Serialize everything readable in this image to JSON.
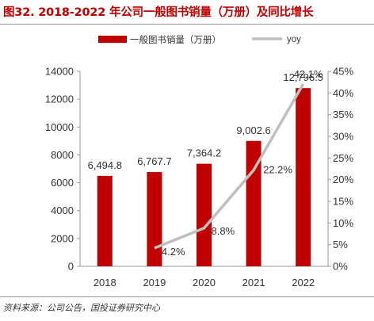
{
  "figure": {
    "title": "图32. 2018-2022 年公司一般图书销量（万册）及同比增长",
    "source": "资料来源：公司公告，国投证券研究中心"
  },
  "chart_data": {
    "type": "bar",
    "categories": [
      "2018",
      "2019",
      "2020",
      "2021",
      "2022"
    ],
    "series": [
      {
        "name": "一般图书销量（万册）",
        "type": "bar",
        "axis": "left",
        "values": [
          6494.8,
          6767.7,
          7364.2,
          9002.6,
          12796.5
        ],
        "labels": [
          "6,494.8",
          "6,767.7",
          "7,364.2",
          "9,002.6",
          "12,796.5"
        ],
        "color": "#c00000"
      },
      {
        "name": "yoy",
        "type": "line",
        "axis": "right",
        "values": [
          null,
          4.2,
          8.8,
          22.2,
          42.1
        ],
        "labels": [
          "",
          "4.2%",
          "8.8%",
          "22.2%",
          "42.1%"
        ],
        "color": "#bfbfbf"
      }
    ],
    "y_left": {
      "min": 0,
      "max": 14000,
      "ticks": [
        "0",
        "2000",
        "4000",
        "6000",
        "8000",
        "10000",
        "12000",
        "14000"
      ]
    },
    "y_right": {
      "min": 0,
      "max": 45,
      "ticks": [
        "0%",
        "5%",
        "10%",
        "15%",
        "20%",
        "25%",
        "30%",
        "35%",
        "40%",
        "45%"
      ]
    },
    "legend_position": "top",
    "grid": false
  }
}
